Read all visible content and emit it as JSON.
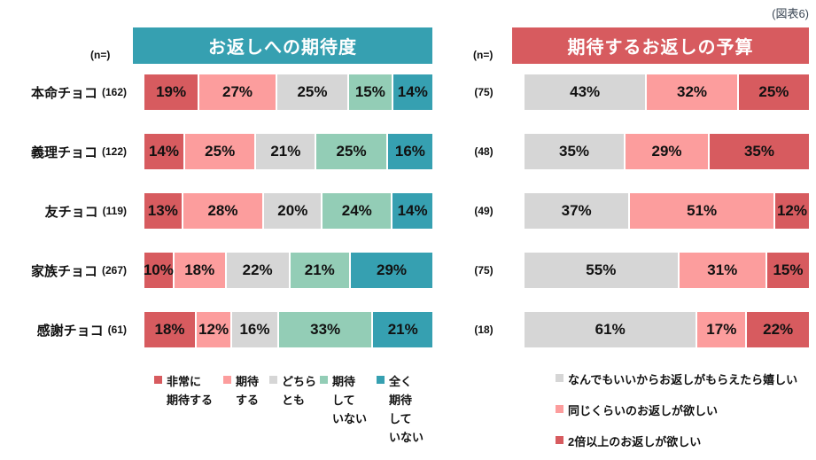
{
  "figure_label": "(図表6)",
  "chart_data": [
    {
      "type": "bar",
      "stacked": true,
      "orientation": "horizontal",
      "title": "お返しへの期待度",
      "title_bg": "#36a0b1",
      "n_label": "(n=)",
      "unit": "%",
      "xlim": [
        0,
        100
      ],
      "legend_position": "bottom",
      "categories": [
        "本命チョコ",
        "義理チョコ",
        "友チョコ",
        "家族チョコ",
        "感謝チョコ"
      ],
      "n_values": [
        "(162)",
        "(122)",
        "(119)",
        "(267)",
        "(61)"
      ],
      "series": [
        {
          "name": "非常に期待する",
          "legend_lines": [
            "非常に",
            "期待する"
          ],
          "color": "#d75b5f",
          "values": [
            19,
            14,
            13,
            10,
            18
          ]
        },
        {
          "name": "期待する",
          "legend_lines": [
            "期待",
            "する"
          ],
          "color": "#fc9d9d",
          "values": [
            27,
            25,
            28,
            18,
            12
          ]
        },
        {
          "name": "どちらとも",
          "legend_lines": [
            "どちら",
            "とも"
          ],
          "color": "#d6d6d6",
          "values": [
            25,
            21,
            20,
            22,
            16
          ]
        },
        {
          "name": "期待していない",
          "legend_lines": [
            "期待",
            "して",
            "いない"
          ],
          "color": "#93cdb6",
          "values": [
            15,
            25,
            24,
            21,
            33
          ]
        },
        {
          "name": "全く期待していない",
          "legend_lines": [
            "全く",
            "期待",
            "して",
            "いない"
          ],
          "color": "#36a0b1",
          "values": [
            14,
            16,
            14,
            29,
            21
          ]
        }
      ]
    },
    {
      "type": "bar",
      "stacked": true,
      "orientation": "horizontal",
      "title": "期待するお返しの予算",
      "title_bg": "#d75b5f",
      "n_label": "(n=)",
      "unit": "%",
      "xlim": [
        0,
        100
      ],
      "legend_position": "bottom",
      "n_values": [
        "(75)",
        "(48)",
        "(49)",
        "(75)",
        "(18)"
      ],
      "series": [
        {
          "name": "なんでもいいからお返しがもらえたら嬉しい",
          "color": "#d6d6d6",
          "values": [
            43,
            35,
            37,
            55,
            61
          ]
        },
        {
          "name": "同じくらいのお返しが欲しい",
          "color": "#fc9d9d",
          "values": [
            32,
            29,
            51,
            31,
            17
          ]
        },
        {
          "name": "2倍以上のお返しが欲しい",
          "color": "#d75b5f",
          "values": [
            25,
            35,
            12,
            15,
            22
          ]
        }
      ]
    }
  ]
}
